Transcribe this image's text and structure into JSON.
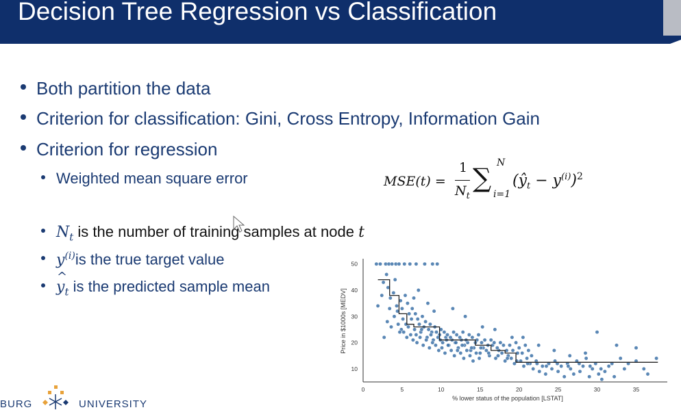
{
  "slide": {
    "title": "Decision Tree Regression vs Classification",
    "bullets": [
      "Both partition the data",
      "Criterion for classification: Gini, Cross Entropy, Information  Gain",
      "Criterion for regression"
    ],
    "sub_bullets": {
      "mse": "Weighted mean square error",
      "nt_symbol": "N",
      "nt_sub": "t",
      "nt_text": " is the number of training samples at node ",
      "nt_t": "t",
      "y_symbol": "y",
      "y_sup": "(i)",
      "y_text": "is the true target value",
      "yhat_symbol": "y",
      "yhat_sub": "t",
      "yhat_text": " is the predicted sample mean"
    },
    "formula": {
      "lhs": "MSE(t) =",
      "numerator": "1",
      "den_main": "N",
      "den_sub": "t",
      "sum_upper": "N",
      "sum_lower": "i=1",
      "body": "(ŷ",
      "body_sub": "t",
      "minus": " − y",
      "y_sup": "(i)",
      "close": ")",
      "power": "2"
    },
    "colors": {
      "header": "#0f2f6b",
      "text": "#1a3a72",
      "points": "#3d72a8",
      "gold": "#e8a23a"
    },
    "logo": {
      "left": "BURG",
      "right": "UNIVERSITY",
      "emblem_icon": "snowflake-emblem-icon"
    }
  },
  "chart_data": {
    "type": "scatter",
    "title": "",
    "xlabel": "% lower status of the population [LSTAT]",
    "ylabel": "Price in $1000s [MEDV]",
    "xlim": [
      0,
      39
    ],
    "ylim": [
      5,
      52
    ],
    "xticks": [
      0,
      5,
      10,
      15,
      20,
      25,
      30,
      35
    ],
    "yticks": [
      10,
      20,
      30,
      40,
      50
    ],
    "grid": false,
    "series": [
      {
        "points": [
          [
            1.7,
            50
          ],
          [
            2.2,
            50
          ],
          [
            2.9,
            50
          ],
          [
            3.3,
            50
          ],
          [
            3.7,
            50
          ],
          [
            4.2,
            50
          ],
          [
            4.6,
            50
          ],
          [
            5.3,
            50
          ],
          [
            6.0,
            50
          ],
          [
            6.8,
            50
          ],
          [
            7.9,
            50
          ],
          [
            8.9,
            50
          ],
          [
            9.5,
            50
          ],
          [
            1.9,
            34
          ],
          [
            2.4,
            38
          ],
          [
            2.6,
            43
          ],
          [
            3.0,
            46
          ],
          [
            3.2,
            41
          ],
          [
            3.5,
            37
          ],
          [
            3.9,
            39
          ],
          [
            4.1,
            44
          ],
          [
            4.4,
            32
          ],
          [
            4.8,
            36
          ],
          [
            5.1,
            29
          ],
          [
            5.5,
            27
          ],
          [
            5.9,
            31
          ],
          [
            6.3,
            33
          ],
          [
            6.6,
            25
          ],
          [
            7.0,
            29
          ],
          [
            7.4,
            24
          ],
          [
            7.8,
            26
          ],
          [
            8.2,
            22
          ],
          [
            8.6,
            27
          ],
          [
            9.0,
            21
          ],
          [
            9.4,
            24
          ],
          [
            9.8,
            23
          ],
          [
            10.2,
            20
          ],
          [
            10.6,
            22
          ],
          [
            11.0,
            19
          ],
          [
            11.4,
            21
          ],
          [
            11.8,
            20
          ],
          [
            12.2,
            18
          ],
          [
            12.6,
            21
          ],
          [
            13.0,
            19
          ],
          [
            13.4,
            20
          ],
          [
            13.8,
            17
          ],
          [
            14.2,
            18
          ],
          [
            14.6,
            21
          ],
          [
            15.0,
            16
          ],
          [
            15.4,
            18
          ],
          [
            15.8,
            17
          ],
          [
            16.2,
            15
          ],
          [
            16.6,
            19
          ],
          [
            17.0,
            14
          ],
          [
            17.4,
            17
          ],
          [
            17.8,
            16
          ],
          [
            18.2,
            13
          ],
          [
            18.6,
            15
          ],
          [
            19.0,
            14
          ],
          [
            19.4,
            12
          ],
          [
            19.8,
            16
          ],
          [
            20.2,
            13
          ],
          [
            20.6,
            11
          ],
          [
            21.0,
            14
          ],
          [
            21.4,
            12
          ],
          [
            21.8,
            10
          ],
          [
            22.2,
            13
          ],
          [
            22.6,
            9
          ],
          [
            23.0,
            11
          ],
          [
            23.4,
            8
          ],
          [
            23.8,
            12
          ],
          [
            24.2,
            10
          ],
          [
            24.6,
            13
          ],
          [
            25.0,
            9
          ],
          [
            25.4,
            11
          ],
          [
            25.8,
            7
          ],
          [
            26.2,
            12
          ],
          [
            26.6,
            10
          ],
          [
            27.0,
            8
          ],
          [
            27.4,
            13
          ],
          [
            27.8,
            9
          ],
          [
            28.2,
            11
          ],
          [
            28.6,
            14
          ],
          [
            29.0,
            7
          ],
          [
            29.4,
            10
          ],
          [
            29.8,
            12
          ],
          [
            30.2,
            8
          ],
          [
            30.6,
            6
          ],
          [
            31.0,
            9
          ],
          [
            31.5,
            11
          ],
          [
            32.2,
            7
          ],
          [
            33.0,
            14
          ],
          [
            34.0,
            12
          ],
          [
            35.0,
            13
          ],
          [
            36.0,
            10
          ],
          [
            37.6,
            14
          ],
          [
            3.1,
            28
          ],
          [
            3.6,
            26
          ],
          [
            4.0,
            30
          ],
          [
            4.5,
            27
          ],
          [
            4.9,
            25
          ],
          [
            5.2,
            24
          ],
          [
            5.6,
            22
          ],
          [
            6.1,
            23
          ],
          [
            6.4,
            21
          ],
          [
            6.9,
            20
          ],
          [
            7.3,
            22
          ],
          [
            7.7,
            19
          ],
          [
            8.1,
            21
          ],
          [
            8.5,
            18
          ],
          [
            8.9,
            20
          ],
          [
            9.3,
            19
          ],
          [
            9.7,
            17
          ],
          [
            10.1,
            18
          ],
          [
            10.5,
            16
          ],
          [
            10.9,
            19
          ],
          [
            11.3,
            17
          ],
          [
            11.7,
            15
          ],
          [
            12.1,
            17
          ],
          [
            12.5,
            16
          ],
          [
            12.9,
            14
          ],
          [
            13.3,
            17
          ],
          [
            13.7,
            15
          ],
          [
            14.1,
            13
          ],
          [
            14.5,
            16
          ],
          [
            14.9,
            14
          ],
          [
            2.7,
            22
          ],
          [
            3.4,
            33
          ],
          [
            4.3,
            34
          ],
          [
            5.0,
            33
          ],
          [
            5.7,
            35
          ],
          [
            6.2,
            29
          ],
          [
            6.7,
            31
          ],
          [
            7.2,
            27
          ],
          [
            7.6,
            30
          ],
          [
            8.0,
            28
          ],
          [
            8.4,
            25
          ],
          [
            8.8,
            24
          ],
          [
            9.2,
            26
          ],
          [
            9.6,
            22
          ],
          [
            10.0,
            25
          ],
          [
            10.4,
            24
          ],
          [
            10.8,
            23
          ],
          [
            11.2,
            22
          ],
          [
            11.6,
            24
          ],
          [
            12.0,
            23
          ],
          [
            12.4,
            22
          ],
          [
            12.8,
            24
          ],
          [
            13.2,
            21
          ],
          [
            13.6,
            23
          ],
          [
            14.0,
            22
          ],
          [
            14.4,
            20
          ],
          [
            14.8,
            23
          ],
          [
            15.2,
            20
          ],
          [
            15.6,
            21
          ],
          [
            16.0,
            19
          ],
          [
            16.4,
            21
          ],
          [
            16.8,
            20
          ],
          [
            17.2,
            18
          ],
          [
            17.6,
            20
          ],
          [
            18.0,
            19
          ],
          [
            18.4,
            17
          ],
          [
            18.8,
            19
          ],
          [
            19.2,
            17
          ],
          [
            19.6,
            20
          ],
          [
            20.0,
            18
          ],
          [
            20.4,
            16
          ],
          [
            20.8,
            19
          ],
          [
            21.2,
            17
          ],
          [
            21.6,
            15
          ],
          [
            5.4,
            38
          ],
          [
            6.5,
            37
          ],
          [
            7.1,
            40
          ],
          [
            8.3,
            35
          ],
          [
            9.1,
            32
          ],
          [
            11.5,
            33
          ],
          [
            13.1,
            30
          ],
          [
            15.3,
            26
          ],
          [
            16.9,
            25
          ],
          [
            19.1,
            22
          ],
          [
            20.5,
            22
          ],
          [
            22.5,
            19
          ],
          [
            24.5,
            17
          ],
          [
            26.5,
            15
          ],
          [
            28.5,
            16
          ],
          [
            30.0,
            24
          ],
          [
            32.5,
            19
          ],
          [
            35.0,
            18
          ],
          [
            4.7,
            24
          ],
          [
            5.8,
            26
          ],
          [
            6.8,
            23
          ],
          [
            7.5,
            25
          ],
          [
            8.7,
            23
          ],
          [
            9.9,
            21
          ],
          [
            10.7,
            21
          ],
          [
            11.9,
            20
          ],
          [
            12.7,
            19
          ],
          [
            13.9,
            18
          ],
          [
            15.1,
            18
          ],
          [
            16.1,
            16
          ],
          [
            17.3,
            15
          ],
          [
            18.5,
            14
          ],
          [
            19.7,
            13
          ],
          [
            21.1,
            12
          ],
          [
            22.3,
            12
          ],
          [
            23.5,
            11
          ],
          [
            24.9,
            12
          ],
          [
            26.3,
            11
          ],
          [
            27.7,
            12
          ],
          [
            29.1,
            11
          ],
          [
            30.5,
            10
          ],
          [
            31.9,
            12
          ],
          [
            33.5,
            10
          ],
          [
            36.5,
            8
          ]
        ]
      },
      {
        "name": "",
        "type": "step",
        "x": [
          1.9,
          3.4,
          3.4,
          4.6,
          4.6,
          5.6,
          5.6,
          6.5,
          6.5,
          9.8,
          9.8,
          14.4,
          14.4,
          16.4,
          16.4,
          18.2,
          18.2,
          19.6,
          19.6,
          37.8
        ],
        "y": [
          44,
          44,
          38,
          38,
          31,
          31,
          27,
          27,
          26,
          26,
          21,
          21,
          19,
          19,
          17,
          17,
          16,
          16,
          12.5,
          12.5
        ]
      }
    ]
  }
}
